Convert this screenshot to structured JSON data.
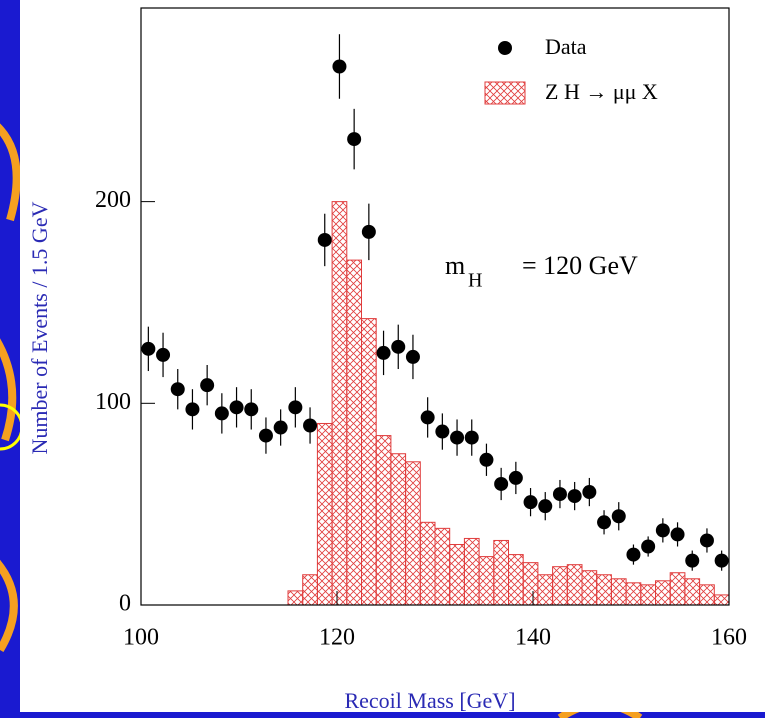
{
  "chart_data": {
    "type": "histogram",
    "xlabel": "Recoil Mass   [GeV]",
    "ylabel": "Number of Events / 1.5 GeV",
    "xlim": [
      100,
      160
    ],
    "ylim": [
      0,
      296
    ],
    "xticks": [
      100,
      120,
      140,
      160
    ],
    "yticks": [
      0,
      100,
      200
    ],
    "name": "Z H → μμ X",
    "color": "#e03c3c",
    "bins": [
      100,
      101.5,
      103,
      104.5,
      106,
      107.5,
      109,
      110.5,
      112,
      113.5,
      115,
      116.5,
      118,
      119.5,
      121,
      122.5,
      124,
      125.5,
      127,
      128.5,
      130,
      131.5,
      133,
      134.5,
      136,
      137.5,
      139,
      140.5,
      142,
      143.5,
      145,
      146.5,
      148,
      149.5,
      151,
      152.5,
      154,
      155.5,
      157,
      158.5,
      160
    ],
    "counts": [
      0,
      0,
      0,
      0,
      0,
      0,
      0,
      0,
      0,
      0,
      7,
      15,
      90,
      200,
      171,
      142,
      84,
      75,
      71,
      41,
      38,
      30,
      33,
      24,
      32,
      25,
      21,
      15,
      19,
      20,
      17,
      15,
      13,
      11,
      10,
      12,
      16,
      13,
      10,
      5
    ],
    "overlay": {
      "type": "errorbar",
      "name": "Data",
      "color": "#000000",
      "x": [
        100.75,
        102.25,
        103.75,
        105.25,
        106.75,
        108.25,
        109.75,
        111.25,
        112.75,
        114.25,
        115.75,
        117.25,
        118.75,
        120.25,
        121.75,
        123.25,
        124.75,
        126.25,
        127.75,
        129.25,
        130.75,
        132.25,
        133.75,
        135.25,
        136.75,
        138.25,
        139.75,
        141.25,
        142.75,
        144.25,
        145.75,
        147.25,
        148.75,
        150.25,
        151.75,
        153.25,
        154.75,
        156.25,
        157.75,
        159.25
      ],
      "values": [
        127,
        124,
        107,
        97,
        109,
        95,
        98,
        97,
        84,
        88,
        98,
        89,
        181,
        267,
        231,
        185,
        125,
        128,
        123,
        93,
        86,
        83,
        83,
        72,
        60,
        63,
        51,
        49,
        55,
        54,
        56,
        41,
        44,
        25,
        29,
        37,
        35,
        22,
        32,
        22
      ],
      "errors": [
        11,
        11,
        10,
        10,
        10,
        10,
        10,
        10,
        9,
        9,
        10,
        9,
        13,
        16,
        15,
        14,
        11,
        11,
        11,
        10,
        9,
        9,
        9,
        8,
        8,
        8,
        7,
        7,
        7,
        7,
        7,
        6,
        7,
        5,
        5,
        6,
        6,
        5,
        6,
        5
      ]
    },
    "annotation": {
      "symbol": "m",
      "subscript": "H",
      "text": "=  120  GeV"
    }
  }
}
